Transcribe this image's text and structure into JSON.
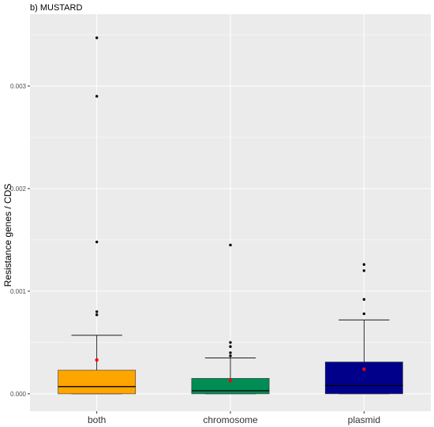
{
  "chart_data": {
    "type": "box",
    "title": "b) MUSTARD",
    "xlabel": "",
    "ylabel": "Resistance genes / CDS",
    "ylim": [
      -0.00017,
      0.0037
    ],
    "yticks": [
      0.0,
      0.001,
      0.002,
      0.003
    ],
    "ytick_labels": [
      "0.000",
      "0.001",
      "0.002",
      "0.003"
    ],
    "grid": true,
    "legend": "none",
    "categories": [
      "both",
      "chromosome",
      "plasmid"
    ],
    "series": [
      {
        "category": "both",
        "color": "#FFA500",
        "whisker_low": 0.0,
        "q1": 0.0,
        "median": 7e-05,
        "q3": 0.00023,
        "whisker_high": 0.00057,
        "mean": 0.00033,
        "outliers": [
          0.00347,
          0.0029,
          0.00148,
          0.0008,
          0.00077
        ]
      },
      {
        "category": "chromosome",
        "color": "#008C55",
        "whisker_low": 0.0,
        "q1": 0.0,
        "median": 3e-05,
        "q3": 0.00015,
        "whisker_high": 0.00035,
        "mean": 0.00013,
        "outliers": [
          0.00145,
          0.0005,
          0.00046,
          0.0004,
          0.00037
        ]
      },
      {
        "category": "plasmid",
        "color": "#00008B",
        "whisker_low": 0.0,
        "q1": 0.0,
        "median": 8e-05,
        "q3": 0.00031,
        "whisker_high": 0.00072,
        "mean": 0.00024,
        "outliers": [
          0.00126,
          0.0012,
          0.00092,
          0.00078
        ]
      }
    ],
    "mean_marker_color": "#FF0000"
  }
}
